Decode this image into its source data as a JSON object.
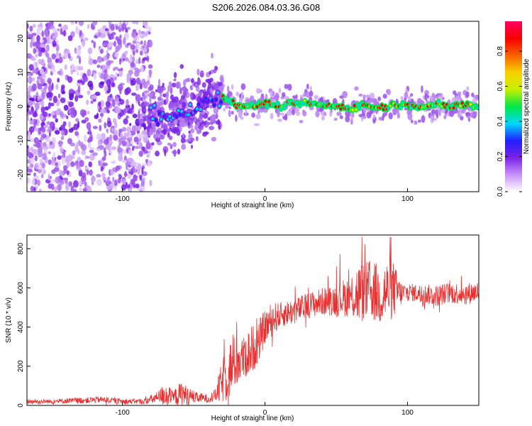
{
  "title": "S206.2026.084.03.36.G08",
  "colors": {
    "snr_line": "#e83030",
    "ridge": "#e83030",
    "scatter": "#7a22e6",
    "axis": "#000000"
  },
  "chart_data": [
    {
      "type": "heatmap",
      "name": "spectrogram",
      "xlabel": "Height of straight line (km)",
      "ylabel": "Frequency (Hz)",
      "xlim": [
        -167,
        150
      ],
      "ylim": [
        -25,
        25
      ],
      "xticks": [
        -100,
        0,
        100
      ],
      "xtick_labels": [
        "-100",
        "0",
        "100"
      ],
      "yticks": [
        -20,
        -10,
        0,
        10,
        20
      ],
      "ytick_labels": [
        "-20",
        "-10",
        "0",
        "10",
        "20"
      ],
      "ridge": {
        "x": [
          -80,
          -70,
          -60,
          -50,
          -40,
          -30,
          -20,
          -10,
          0,
          10,
          20,
          30,
          40,
          50,
          60,
          70,
          80,
          90,
          100,
          110,
          120,
          130,
          140,
          150
        ],
        "y": [
          -2.5,
          -3.5,
          -2.0,
          -1.0,
          2.0,
          3.0,
          0.5,
          0.0,
          1.0,
          0.0,
          1.0,
          1.0,
          0.5,
          0.0,
          -0.5,
          0.5,
          -0.5,
          0.5,
          0.5,
          0.0,
          0.5,
          0.0,
          0.5,
          0.0
        ]
      },
      "colorbar": {
        "label": "Normalized spectral amplitude",
        "ticks": [
          0.0,
          0.2,
          0.4,
          0.6,
          0.8
        ],
        "tick_labels": [
          "0.0",
          "0.2",
          "0.4",
          "0.6",
          "0.8"
        ],
        "range": [
          0,
          0.97
        ],
        "colors": [
          "#ffffff",
          "#c890f8",
          "#7a22e6",
          "#2020ff",
          "#00d8f8",
          "#00e848",
          "#c8f000",
          "#f8d000",
          "#f86000",
          "#f80000",
          "#ff0060"
        ]
      }
    },
    {
      "type": "line",
      "name": "snr",
      "xlabel": "Height of straight line (km)",
      "ylabel": "SNR (10 * v/v)",
      "xlim": [
        -167,
        150
      ],
      "ylim": [
        0,
        870
      ],
      "xticks": [
        -100,
        0,
        100
      ],
      "xtick_labels": [
        "-100",
        "0",
        "100"
      ],
      "yticks": [
        0,
        200,
        400,
        600,
        800
      ],
      "ytick_labels": [
        "0",
        "200",
        "400",
        "600",
        "800"
      ],
      "envelope": {
        "x": [
          -167,
          -150,
          -130,
          -115,
          -100,
          -85,
          -75,
          -70,
          -65,
          -58,
          -55,
          -48,
          -40,
          -35,
          -32,
          -28,
          -25,
          -20,
          -15,
          -10,
          -5,
          0,
          5,
          10,
          20,
          30,
          40,
          50,
          60,
          65,
          70,
          75,
          80,
          85,
          90,
          95,
          100,
          110,
          120,
          130,
          140,
          150
        ],
        "mean": [
          20,
          20,
          25,
          30,
          20,
          20,
          40,
          60,
          40,
          60,
          50,
          40,
          35,
          50,
          90,
          150,
          180,
          230,
          240,
          280,
          320,
          400,
          440,
          460,
          480,
          510,
          530,
          540,
          560,
          570,
          580,
          590,
          560,
          580,
          590,
          570,
          580,
          570,
          560,
          575,
          570,
          580
        ],
        "spread": [
          25,
          20,
          30,
          30,
          25,
          25,
          60,
          120,
          60,
          130,
          90,
          50,
          40,
          60,
          150,
          250,
          280,
          250,
          200,
          230,
          200,
          160,
          160,
          120,
          120,
          120,
          130,
          150,
          200,
          300,
          270,
          300,
          280,
          300,
          270,
          120,
          80,
          90,
          100,
          100,
          100,
          100
        ]
      }
    }
  ]
}
